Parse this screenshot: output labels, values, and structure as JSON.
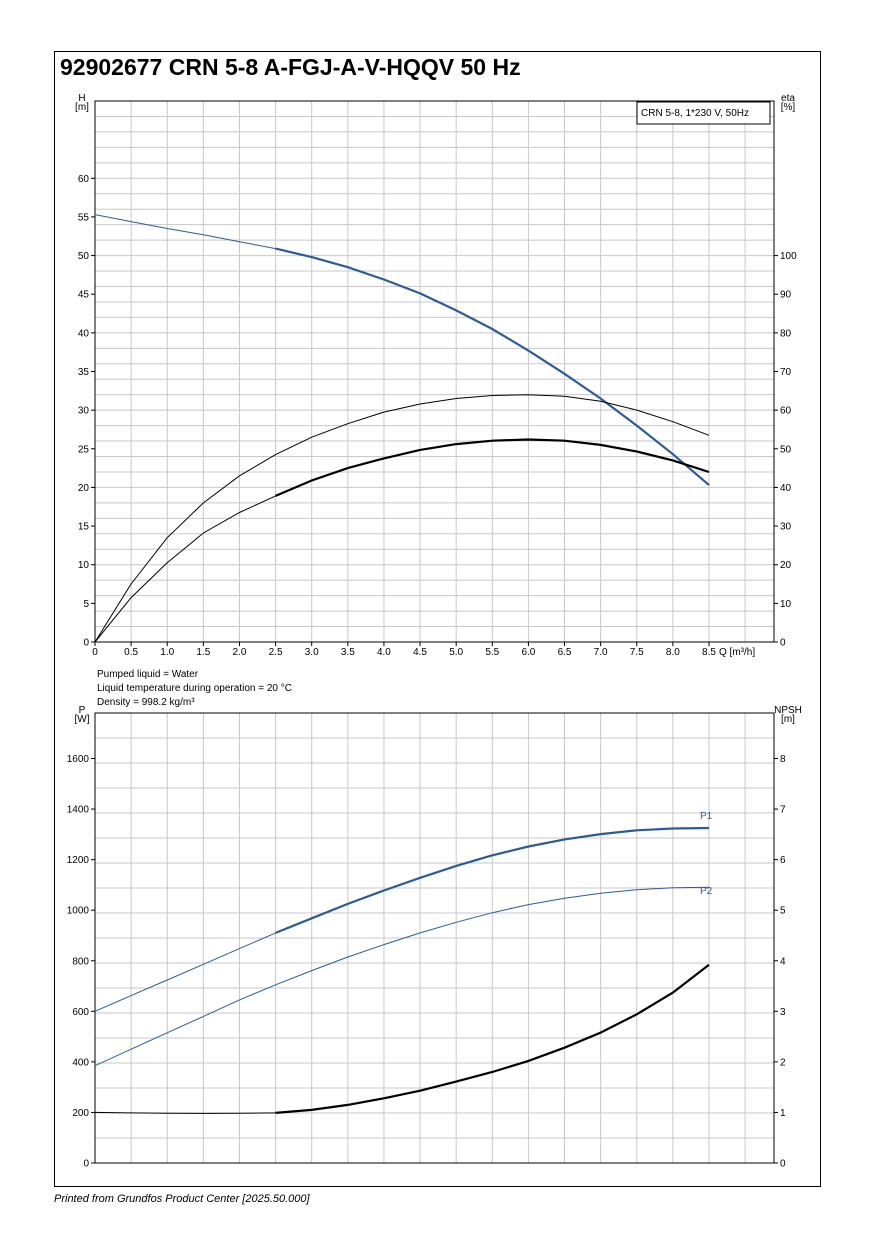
{
  "title": "92902677 CRN 5-8 A-FGJ-A-V-HQQV 50 Hz",
  "footer": "Printed from Grundfos Product Center [2025.50.000]",
  "notes": {
    "liquid": "Pumped liquid = Water",
    "temperature": "Liquid temperature during operation = 20 °C",
    "density": "Density = 998.2 kg/m³"
  },
  "colors": {
    "blue": "#2b5c99",
    "black": "#000000",
    "grid": "#c8c8c8"
  },
  "chart_data": [
    {
      "type": "line",
      "legend": "CRN 5-8, 1*230 V, 50Hz",
      "xlabel": "Q [m³/h]",
      "ylabel_left": [
        "H",
        "[m]"
      ],
      "ylabel_right": [
        "eta",
        "[%]"
      ],
      "xlim": [
        0,
        9.4
      ],
      "ylim_left": [
        0,
        70
      ],
      "ylim_right": [
        0,
        140
      ],
      "grid": true,
      "x_ticks": [
        "0",
        "0.5",
        "1.0",
        "1.5",
        "2.0",
        "2.5",
        "3.0",
        "3.5",
        "4.0",
        "4.5",
        "5.0",
        "5.5",
        "6.0",
        "6.5",
        "7.0",
        "7.5",
        "8.0",
        "8.5"
      ],
      "y_ticks_left": [
        "0",
        "5",
        "10",
        "15",
        "20",
        "25",
        "30",
        "35",
        "40",
        "45",
        "50",
        "55",
        "60"
      ],
      "y_ticks_right": [
        "0",
        "10",
        "20",
        "30",
        "40",
        "50",
        "60",
        "70",
        "80",
        "90",
        "100"
      ],
      "series": [
        {
          "axis": "left",
          "color": "blue",
          "solid_from": 2.5,
          "x": [
            0,
            0.5,
            1.0,
            1.5,
            2.0,
            2.5,
            3.0,
            3.5,
            4.0,
            4.5,
            5.0,
            5.5,
            6.0,
            6.5,
            7.0,
            7.5,
            8.0,
            8.5
          ],
          "values": [
            55.3,
            54.4,
            53.5,
            52.7,
            51.8,
            50.9,
            49.8,
            48.5,
            46.9,
            45.1,
            42.9,
            40.5,
            37.7,
            34.7,
            31.5,
            28.0,
            24.3,
            20.3
          ]
        },
        {
          "axis": "right",
          "color": "black",
          "solid_from": 99,
          "x": [
            0,
            0.5,
            1.0,
            1.5,
            2.0,
            2.5,
            3.0,
            3.5,
            4.0,
            4.5,
            5.0,
            5.5,
            6.0,
            6.5,
            7.0,
            7.5,
            8.0,
            8.5
          ],
          "values": [
            0,
            15,
            27,
            36,
            43,
            48.5,
            53,
            56.5,
            59.5,
            61.6,
            63,
            63.8,
            64,
            63.6,
            62.3,
            60,
            57,
            53.5
          ]
        },
        {
          "axis": "right",
          "color": "black",
          "solid_from": 2.5,
          "x": [
            0,
            0.5,
            1.0,
            1.5,
            2.0,
            2.5,
            3.0,
            3.5,
            4.0,
            4.5,
            5.0,
            5.5,
            6.0,
            6.5,
            7.0,
            7.5,
            8.0,
            8.5
          ],
          "values": [
            0,
            11.5,
            20.5,
            28.2,
            33.5,
            37.8,
            41.8,
            45,
            47.5,
            49.7,
            51.2,
            52.1,
            52.4,
            52.1,
            51,
            49.3,
            47,
            44
          ]
        }
      ]
    },
    {
      "type": "line",
      "xlabel": "",
      "ylabel_left": [
        "P",
        "[W]"
      ],
      "ylabel_right": [
        "NPSH",
        "[m]"
      ],
      "xlim": [
        0,
        9.4
      ],
      "ylim_left": [
        0,
        1780
      ],
      "ylim_right": [
        0,
        8.9
      ],
      "grid": true,
      "y_ticks_left": [
        "0",
        "200",
        "400",
        "600",
        "800",
        "1000",
        "1200",
        "1400",
        "1600"
      ],
      "y_ticks_right": [
        "0",
        "1",
        "2",
        "3",
        "4",
        "5",
        "6",
        "7",
        "8"
      ],
      "series": [
        {
          "name": "P1",
          "axis": "left",
          "color": "blue",
          "solid_from": 2.5,
          "x": [
            0,
            0.5,
            1.0,
            1.5,
            2.0,
            2.5,
            3.0,
            3.5,
            4.0,
            4.5,
            5.0,
            5.5,
            6.0,
            6.5,
            7.0,
            7.5,
            8.0,
            8.5
          ],
          "values": [
            600,
            662,
            724,
            786,
            848,
            910,
            968,
            1025,
            1078,
            1128,
            1175,
            1217,
            1252,
            1280,
            1301,
            1316,
            1323,
            1325
          ]
        },
        {
          "name": "P2",
          "axis": "left",
          "color": "blue",
          "solid_from": 99,
          "x": [
            0,
            0.5,
            1.0,
            1.5,
            2.0,
            2.5,
            3.0,
            3.5,
            4.0,
            4.5,
            5.0,
            5.5,
            6.0,
            6.5,
            7.0,
            7.5,
            8.0,
            8.5
          ],
          "values": [
            385,
            450,
            515,
            580,
            645,
            705,
            761,
            815,
            864,
            910,
            952,
            990,
            1022,
            1047,
            1067,
            1081,
            1089,
            1091
          ]
        },
        {
          "axis": "right",
          "color": "black",
          "solid_from": 2.5,
          "x": [
            0,
            0.5,
            1.0,
            1.5,
            2.0,
            2.5,
            3.0,
            3.5,
            4.0,
            4.5,
            5.0,
            5.5,
            6.0,
            6.5,
            7.0,
            7.5,
            8.0,
            8.5
          ],
          "values": [
            1.0,
            0.99,
            0.985,
            0.98,
            0.985,
            0.99,
            1.05,
            1.15,
            1.28,
            1.43,
            1.61,
            1.8,
            2.02,
            2.28,
            2.58,
            2.94,
            3.37,
            3.92
          ]
        }
      ]
    }
  ]
}
